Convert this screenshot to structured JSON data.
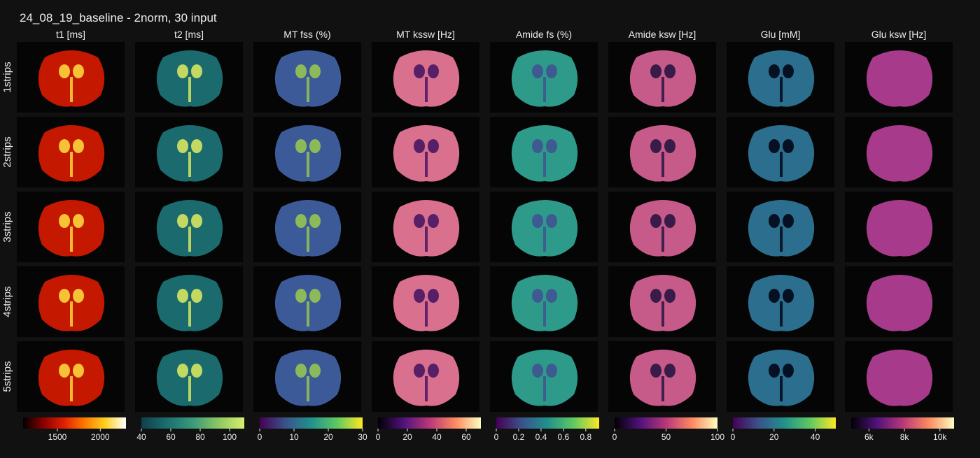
{
  "title": "24_08_19_baseline - 2norm, 30 input",
  "rows": [
    "1strips",
    "2strips",
    "3strips",
    "4strips",
    "5strips"
  ],
  "columns": [
    {
      "label": "t1 [ms]",
      "colorbar": {
        "lim": [
          1100,
          2300
        ],
        "ticks": [
          1500,
          2000
        ]
      }
    },
    {
      "label": "t2 [ms]",
      "colorbar": {
        "lim": [
          40,
          110
        ],
        "ticks": [
          40,
          60,
          80,
          100
        ]
      }
    },
    {
      "label": "MT fss (%)",
      "colorbar": {
        "lim": [
          0,
          30
        ],
        "ticks": [
          0,
          10,
          20,
          30
        ]
      }
    },
    {
      "label": "MT kssw [Hz]",
      "colorbar": {
        "lim": [
          0,
          70
        ],
        "ticks": [
          0,
          20,
          40,
          60
        ]
      }
    },
    {
      "label": "Amide fs (%)",
      "colorbar": {
        "lim": [
          0,
          0.92
        ],
        "ticks": [
          0,
          0.2,
          0.4,
          0.6,
          0.8
        ]
      }
    },
    {
      "label": "Amide ksw [Hz]",
      "colorbar": {
        "lim": [
          0,
          100
        ],
        "ticks": [
          0,
          50,
          100
        ]
      }
    },
    {
      "label": "Glu [mM]",
      "colorbar": {
        "lim": [
          0,
          50
        ],
        "ticks": [
          0,
          20,
          40
        ]
      }
    },
    {
      "label": "Glu ksw [Hz]",
      "colorbar": {
        "lim": [
          5000,
          10800
        ],
        "ticks": [
          {
            "value": 6000,
            "label": "6k"
          },
          {
            "value": 8000,
            "label": "8k"
          },
          {
            "value": 10000,
            "label": "10k"
          }
        ]
      }
    }
  ]
}
